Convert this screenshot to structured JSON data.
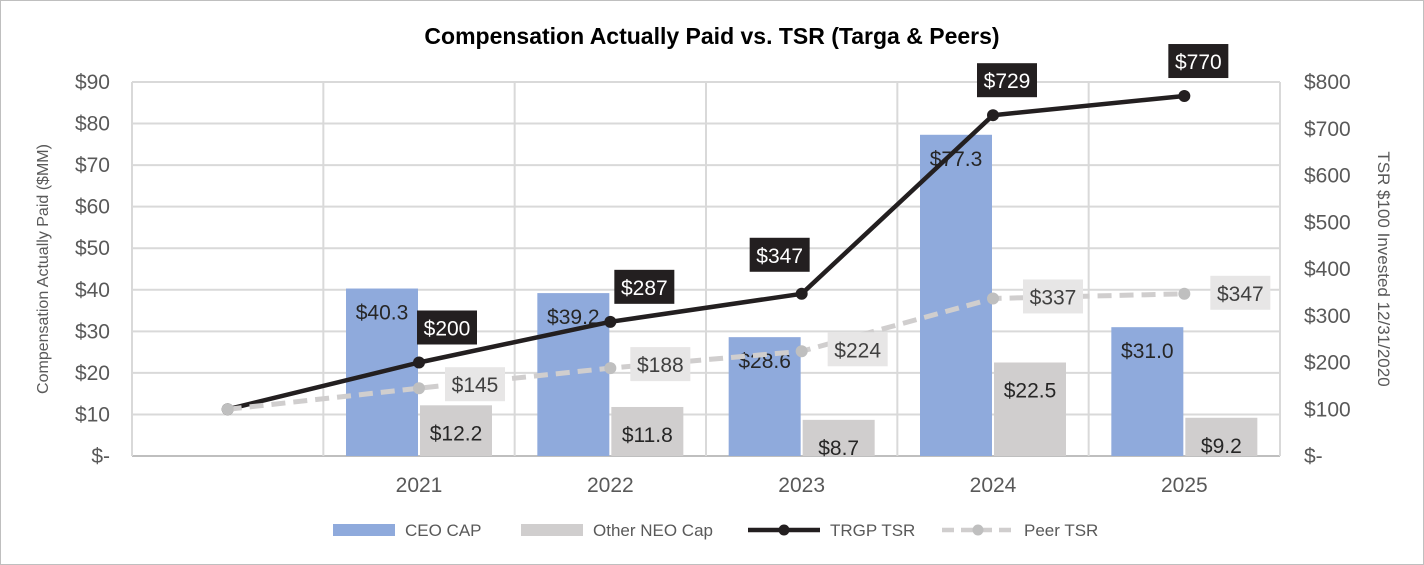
{
  "chart_data": {
    "type": "bar",
    "title": "Compensation Actually Paid vs. TSR (Targa & Peers)",
    "categories": [
      "2021",
      "2022",
      "2023",
      "2024",
      "2025"
    ],
    "ylabel": "Compensation Actually Paid ($MM)",
    "ylabel_right": "TSR $100 Invested 12/31/2020",
    "ylim": [
      0,
      90
    ],
    "ylim_right": [
      0,
      800
    ],
    "yticks": [
      "$-",
      "$10",
      "$20",
      "$30",
      "$40",
      "$50",
      "$60",
      "$70",
      "$80",
      "$90"
    ],
    "yticks_right": [
      "$-",
      "$100",
      "$200",
      "$300",
      "$400",
      "$500",
      "$600",
      "$700",
      "$800"
    ],
    "grid": true,
    "legend_position": "bottom",
    "bar_series": [
      {
        "name": "CEO CAP",
        "color": "#8faadc",
        "values": [
          40.3,
          39.2,
          28.6,
          77.3,
          31.0
        ],
        "labels": [
          "$40.3",
          "$39.2",
          "$28.6",
          "$77.3",
          "$31.0"
        ]
      },
      {
        "name": "Other NEO Cap",
        "color": "#d0cece",
        "values": [
          12.2,
          11.8,
          8.7,
          22.5,
          9.2
        ],
        "labels": [
          "$12.2",
          "$11.8",
          "$8.7",
          "$22.5",
          "$9.2"
        ]
      }
    ],
    "line_series": [
      {
        "name": "TRGP TSR",
        "color": "#231f20",
        "style": "solid",
        "values": [
          100,
          200,
          287,
          347,
          729,
          770
        ],
        "labels": [
          "",
          "$200",
          "$287",
          "$347",
          "$729",
          "$770"
        ]
      },
      {
        "name": "Peer TSR",
        "color": "#d0cece",
        "style": "dashed",
        "values": [
          100,
          145,
          188,
          224,
          337,
          347
        ],
        "labels": [
          "",
          "$145",
          "$188",
          "$224",
          "$337",
          "$347"
        ]
      }
    ]
  }
}
